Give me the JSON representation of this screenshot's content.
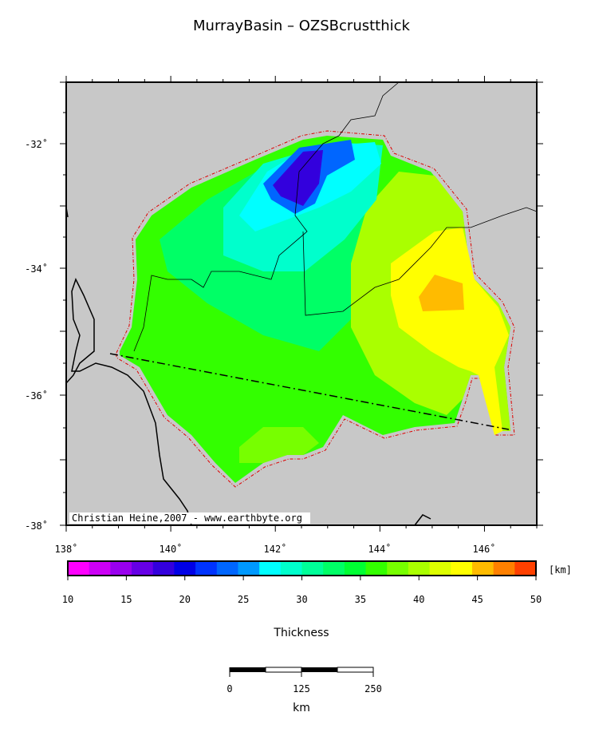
{
  "header": {
    "title": "MurrayBasin – OZSBcrustthick"
  },
  "map": {
    "lat_labels": [
      "-32˚",
      "-34˚",
      "-36˚",
      "-38˚"
    ],
    "lon_labels": [
      "138˚",
      "140˚",
      "142˚",
      "144˚",
      "146˚"
    ],
    "credit": "Christian Heine,2007 - www.earthbyte.org"
  },
  "colorbar": {
    "ticks": [
      10,
      15,
      20,
      25,
      30,
      35,
      40,
      45,
      50
    ],
    "unit": "[km]",
    "label": "Thickness",
    "colors": [
      "#ff00ff",
      "#cc00f5",
      "#9900ee",
      "#6600e6",
      "#3300dd",
      "#0000e6",
      "#0033ff",
      "#0066ff",
      "#0099ff",
      "#00ffff",
      "#00ffcc",
      "#00ff99",
      "#00ff66",
      "#00ff33",
      "#33ff00",
      "#77ff00",
      "#aaff00",
      "#ddff00",
      "#ffff00",
      "#ffbb00"
    ],
    "extra_colors": [
      "#ff8000",
      "#ff4000"
    ]
  },
  "scalebar": {
    "labels": [
      "0",
      "125",
      "250"
    ],
    "unit": "km"
  }
}
